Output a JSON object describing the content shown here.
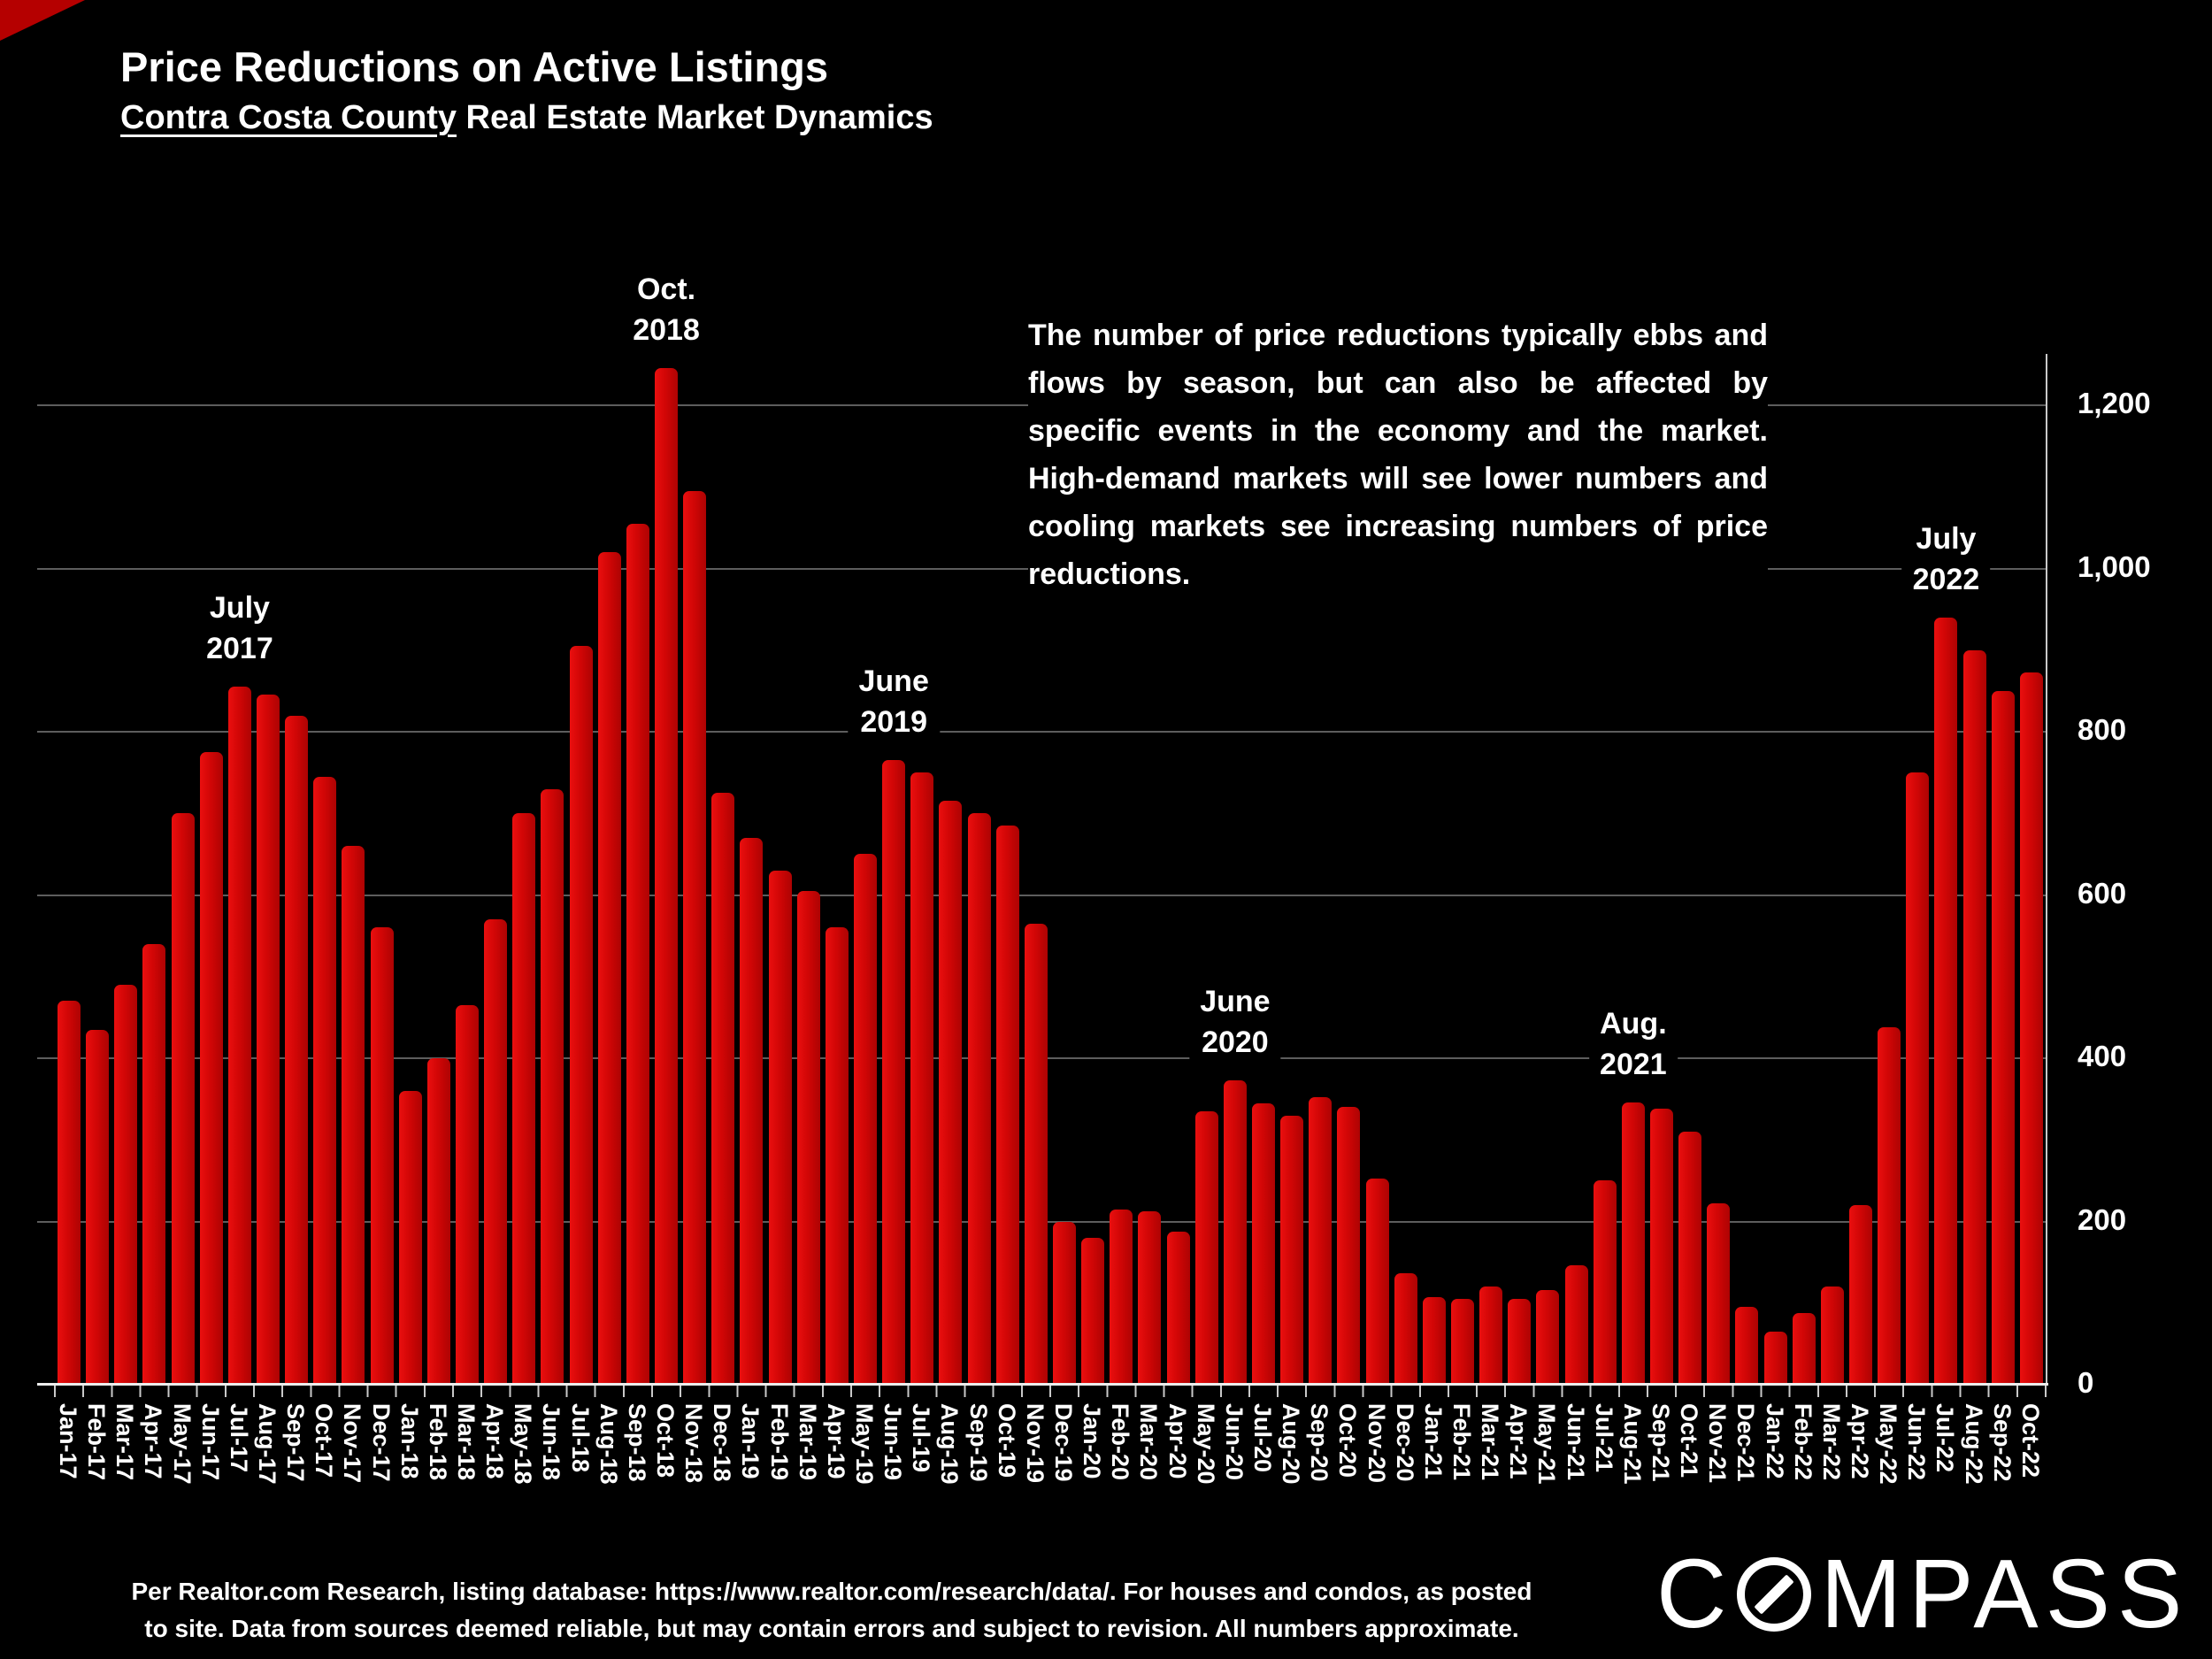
{
  "slide": {
    "title": "Price Reductions on Active Listings",
    "subtitle_underlined": "Contra Costa County",
    "subtitle_rest": " Real Estate Market Dynamics",
    "footer_line1": "Per Realtor.com Research, listing database:  https://www.realtor.com/research/data/. For houses and condos, as posted",
    "footer_line2": "to site. Data from sources deemed reliable, but may contain errors and subject to revision. All numbers approximate.",
    "logo_text": "COMPASS"
  },
  "commentary": "The number of price reductions typically ebbs and flows by season, but can also be affected by specific events in the economy and the market. High-demand markets will see lower numbers and cooling markets see increasing numbers of price reductions.",
  "chart_data": {
    "type": "bar",
    "title": "Price Reductions on Active Listings",
    "xlabel": "",
    "ylabel": "",
    "ylim": [
      0,
      1300
    ],
    "grid": true,
    "legend": "none",
    "bar_color": "#d20606",
    "background_color": "#000000",
    "yticks": [
      0,
      200,
      400,
      600,
      800,
      1000,
      1200
    ],
    "ytick_labels": [
      "0",
      "200",
      "400",
      "600",
      "800",
      "1,000",
      "1,200"
    ],
    "categories": [
      "Jan-17",
      "Feb-17",
      "Mar-17",
      "Apr-17",
      "May-17",
      "Jun-17",
      "Jul-17",
      "Aug-17",
      "Sep-17",
      "Oct-17",
      "Nov-17",
      "Dec-17",
      "Jan-18",
      "Feb-18",
      "Mar-18",
      "Apr-18",
      "May-18",
      "Jun-18",
      "Jul-18",
      "Aug-18",
      "Sep-18",
      "Oct-18",
      "Nov-18",
      "Dec-18",
      "Jan-19",
      "Feb-19",
      "Mar-19",
      "Apr-19",
      "May-19",
      "Jun-19",
      "Jul-19",
      "Aug-19",
      "Sep-19",
      "Oct-19",
      "Nov-19",
      "Dec-19",
      "Jan-20",
      "Feb-20",
      "Mar-20",
      "Apr-20",
      "May-20",
      "Jun-20",
      "Jul-20",
      "Aug-20",
      "Sep-20",
      "Oct-20",
      "Nov-20",
      "Dec-20",
      "Jan-21",
      "Feb-21",
      "Mar-21",
      "Apr-21",
      "May-21",
      "Jun-21",
      "Jul-21",
      "Aug-21",
      "Sep-21",
      "Oct-21",
      "Nov-21",
      "Dec-21",
      "Jan-22",
      "Feb-22",
      "Mar-22",
      "Apr-22",
      "May-22",
      "Jun-22",
      "Jul-22",
      "Aug-22",
      "Sep-22",
      "Oct-22"
    ],
    "values": [
      470,
      435,
      490,
      540,
      700,
      775,
      855,
      845,
      820,
      745,
      660,
      560,
      360,
      400,
      465,
      570,
      700,
      730,
      905,
      1020,
      1055,
      1245,
      1095,
      725,
      670,
      630,
      605,
      560,
      650,
      765,
      750,
      715,
      700,
      685,
      565,
      200,
      180,
      215,
      212,
      188,
      335,
      373,
      345,
      330,
      352,
      340,
      253,
      137,
      107,
      105,
      120,
      105,
      116,
      146,
      250,
      346,
      338,
      310,
      222,
      95,
      65,
      88,
      120,
      220,
      438,
      750,
      940,
      900,
      850,
      873
    ],
    "annotations": [
      {
        "month": "Jul-17",
        "line1": "July",
        "line2": "2017"
      },
      {
        "month": "Oct-18",
        "line1": "Oct.",
        "line2": "2018"
      },
      {
        "month": "Jun-19",
        "line1": "June",
        "line2": "2019"
      },
      {
        "month": "Jun-20",
        "line1": "June",
        "line2": "2020"
      },
      {
        "month": "Aug-21",
        "line1": "Aug.",
        "line2": "2021"
      },
      {
        "month": "Jul-22",
        "line1": "July",
        "line2": "2022"
      }
    ]
  }
}
